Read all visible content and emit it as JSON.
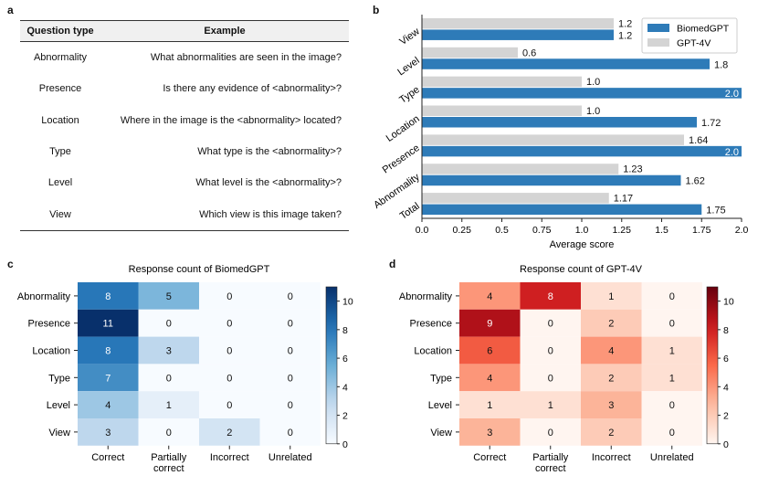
{
  "panels": {
    "a": "a",
    "b": "b",
    "c": "c",
    "d": "d"
  },
  "table_a": {
    "headers": {
      "type": "Question type",
      "example": "Example"
    },
    "rows": [
      {
        "type": "Abnormality",
        "example": "What abnormalities are seen in the image?"
      },
      {
        "type": "Presence",
        "example": "Is there any evidence of <abnormality>?"
      },
      {
        "type": "Location",
        "example": "Where in the image is the <abnormality> located?"
      },
      {
        "type": "Type",
        "example": "What type is the <abnormality>?"
      },
      {
        "type": "Level",
        "example": "What level is the <abnormality>?"
      },
      {
        "type": "View",
        "example": "Which view is this image taken?"
      }
    ]
  },
  "chart_data": [
    {
      "id": "b",
      "type": "bar",
      "orientation": "horizontal",
      "categories": [
        "View",
        "Level",
        "Type",
        "Location",
        "Presence",
        "Abnormality",
        "Total"
      ],
      "series": [
        {
          "name": "GPT-4V",
          "color": "#d4d4d4",
          "values": [
            1.2,
            0.6,
            1.0,
            1.0,
            1.64,
            1.23,
            1.17
          ],
          "labels": [
            "1.2",
            "0.6",
            "1.0",
            "1.0",
            "1.64",
            "1.23",
            "1.17"
          ]
        },
        {
          "name": "BiomedGPT",
          "color": "#2e7bb8",
          "values": [
            1.2,
            1.8,
            2.0,
            1.72,
            2.0,
            1.62,
            1.75
          ],
          "labels": [
            "1.2",
            "1.8",
            "2.0",
            "1.72",
            "2.0",
            "1.62",
            "1.75"
          ]
        }
      ],
      "legend": [
        "BiomedGPT",
        "GPT-4V"
      ],
      "legend_position": "top-right",
      "xlabel": "Average score",
      "xlim": [
        0,
        2.0
      ],
      "xticks": [
        "0.0",
        "0.25",
        "0.5",
        "0.75",
        "1.0",
        "1.25",
        "1.5",
        "1.75",
        "2.0"
      ]
    },
    {
      "id": "c",
      "type": "heatmap",
      "title": "Response count of BiomedGPT",
      "rows": [
        "Abnormality",
        "Presence",
        "Location",
        "Type",
        "Level",
        "View"
      ],
      "columns": [
        "Correct",
        "Partially correct",
        "Incorrect",
        "Unrelated"
      ],
      "column_labels": [
        [
          "Correct"
        ],
        [
          "Partially",
          "correct"
        ],
        [
          "Incorrect"
        ],
        [
          "Unrelated"
        ]
      ],
      "values": [
        [
          8,
          5,
          0,
          0
        ],
        [
          11,
          0,
          0,
          0
        ],
        [
          8,
          3,
          0,
          0
        ],
        [
          7,
          0,
          0,
          0
        ],
        [
          4,
          1,
          0,
          0
        ],
        [
          3,
          0,
          2,
          0
        ]
      ],
      "colormap": "Blues",
      "vmin": 0,
      "vmax": 11,
      "colorbar_ticks": [
        "0",
        "2",
        "4",
        "6",
        "8",
        "10"
      ]
    },
    {
      "id": "d",
      "type": "heatmap",
      "title": "Response count of GPT-4V",
      "rows": [
        "Abnormality",
        "Presence",
        "Location",
        "Type",
        "Level",
        "View"
      ],
      "columns": [
        "Correct",
        "Partially correct",
        "Incorrect",
        "Unrelated"
      ],
      "column_labels": [
        [
          "Correct"
        ],
        [
          "Partially",
          "correct"
        ],
        [
          "Incorrect"
        ],
        [
          "Unrelated"
        ]
      ],
      "values": [
        [
          4,
          8,
          1,
          0
        ],
        [
          9,
          0,
          2,
          0
        ],
        [
          6,
          0,
          4,
          1
        ],
        [
          4,
          0,
          2,
          1
        ],
        [
          1,
          1,
          3,
          0
        ],
        [
          3,
          0,
          2,
          0
        ]
      ],
      "colormap": "Reds",
      "vmin": 0,
      "vmax": 11,
      "colorbar_ticks": [
        "0",
        "2",
        "4",
        "6",
        "8",
        "10"
      ]
    }
  ]
}
